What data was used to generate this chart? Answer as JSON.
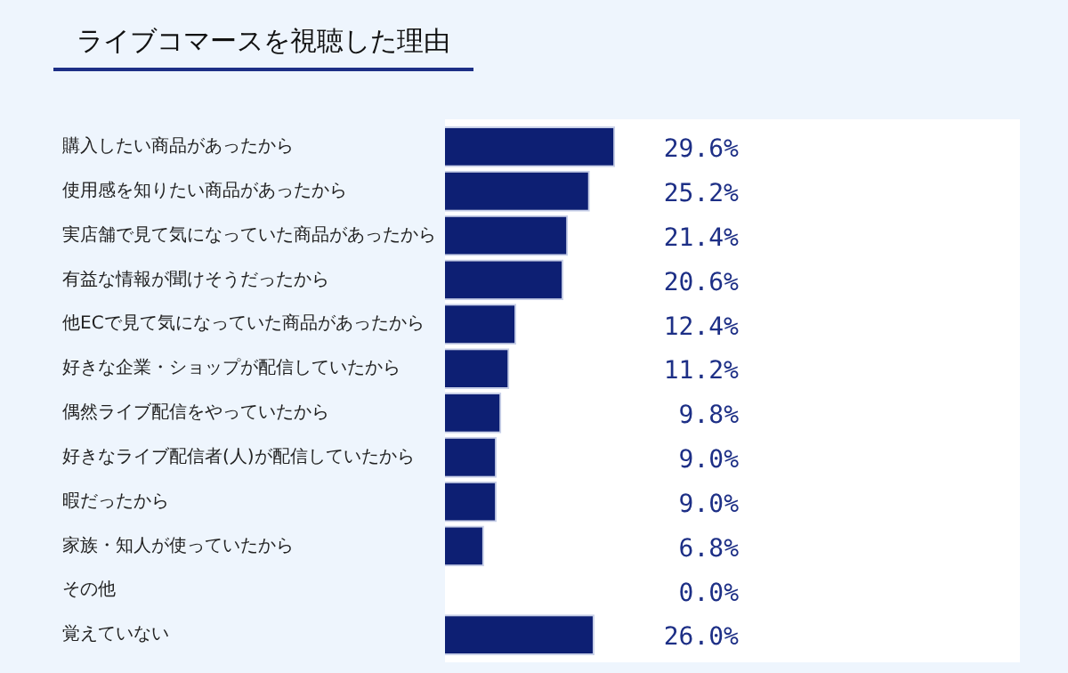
{
  "chart_data": {
    "type": "bar",
    "orientation": "horizontal",
    "title": "ライブコマースを視聴した理由",
    "categories": [
      "購入したい商品があったから",
      "使用感を知りたい商品があったから",
      "実店舗で見て気になっていた商品があったから",
      "有益な情報が聞けそうだったから",
      "他ECで見て気になっていた商品があったから",
      "好きな企業・ショップが配信していたから",
      "偶然ライブ配信をやっていたから",
      "好きなライブ配信者(人)が配信していたから",
      "暇だったから",
      "家族・知人が使っていたから",
      "その他",
      "覚えていない"
    ],
    "values": [
      29.6,
      25.2,
      21.4,
      20.6,
      12.4,
      11.2,
      9.8,
      9.0,
      9.0,
      6.8,
      0.0,
      26.0
    ],
    "value_labels": [
      "29.6%",
      "25.2%",
      "21.4%",
      "20.6%",
      "12.4%",
      "11.2%",
      "9.8%",
      "9.0%",
      "9.0%",
      "6.8%",
      "0.0%",
      "26.0%"
    ],
    "color": "#0d1f73",
    "xlim": [
      0,
      100
    ],
    "tick_labels": "y"
  }
}
